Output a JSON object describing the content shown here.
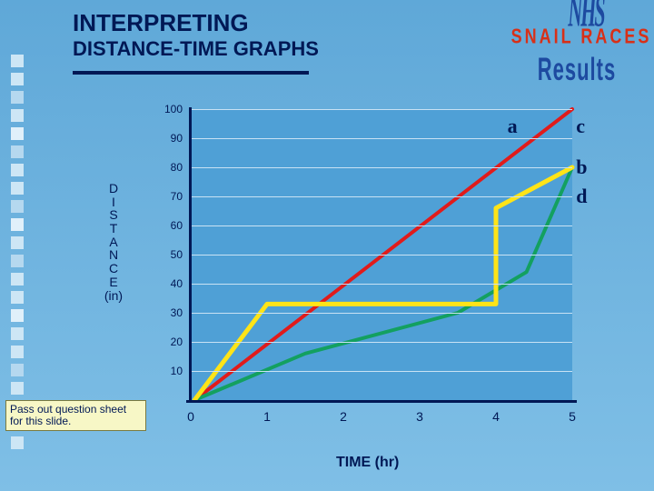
{
  "title": {
    "main": "INTERPRETING",
    "sub": "DISTANCE-TIME GRAPHS",
    "main_fontsize": 26,
    "sub_fontsize": 22,
    "color": "#001855"
  },
  "wordart": {
    "nhs": {
      "text": "NHS",
      "color": "#1d4aa0",
      "fontsize": 22
    },
    "snail": {
      "text": "SNAIL RACES",
      "color": "#d83018",
      "fontsize": 18
    },
    "results": {
      "text": "Results",
      "color": "#1d4aa0",
      "fontsize": 22
    }
  },
  "note": {
    "text": "Pass out question sheet for this slide.",
    "bg": "#f7f7c6"
  },
  "chart": {
    "type": "line",
    "background_color": "#4fa0d6",
    "slide_bg_top": "#5fa8d8",
    "slide_bg_bottom": "#7fbfe6",
    "axis_color": "#001855",
    "grid_color": "#c9e2f4",
    "xlim": [
      0,
      5
    ],
    "ylim": [
      0,
      100
    ],
    "xtick_step": 1,
    "y_ticks": [
      10,
      20,
      30,
      40,
      50,
      60,
      70,
      80,
      90,
      100
    ],
    "x_ticks": [
      0,
      1,
      2,
      3,
      4,
      5
    ],
    "ylabel_vertical": [
      "D",
      "I",
      "S",
      "T",
      "A",
      "N",
      "C",
      "E",
      "(in)"
    ],
    "xlabel": "TIME  (hr)",
    "label_fontsize": 14,
    "series": {
      "a": {
        "label": "a",
        "color": "#e11b1b",
        "width": 4,
        "points": [
          [
            0.05,
            0
          ],
          [
            5,
            100
          ]
        ],
        "label_pos": {
          "x_rel": 0.83,
          "y_rel": 0.02
        }
      },
      "c": {
        "label": "c",
        "color": "#13a060",
        "width": 4,
        "points": [
          [
            0.05,
            0
          ],
          [
            1.5,
            16
          ],
          [
            3.5,
            30
          ],
          [
            4.4,
            44
          ],
          [
            5,
            80
          ]
        ],
        "label_pos": {
          "x_rel": 1.01,
          "y_rel": 0.02
        }
      },
      "b": {
        "label": "b",
        "color": "#ffe417",
        "width": 5,
        "points": [
          [
            0.05,
            0
          ],
          [
            1,
            33
          ],
          [
            2,
            33
          ],
          [
            4,
            33
          ],
          [
            4,
            66
          ],
          [
            5,
            80
          ]
        ],
        "label_pos": {
          "x_rel": 1.01,
          "y_rel": 0.16
        }
      },
      "d": {
        "label": "d",
        "color": "#ffe417",
        "label_pos": {
          "x_rel": 1.01,
          "y_rel": 0.26
        }
      }
    }
  }
}
